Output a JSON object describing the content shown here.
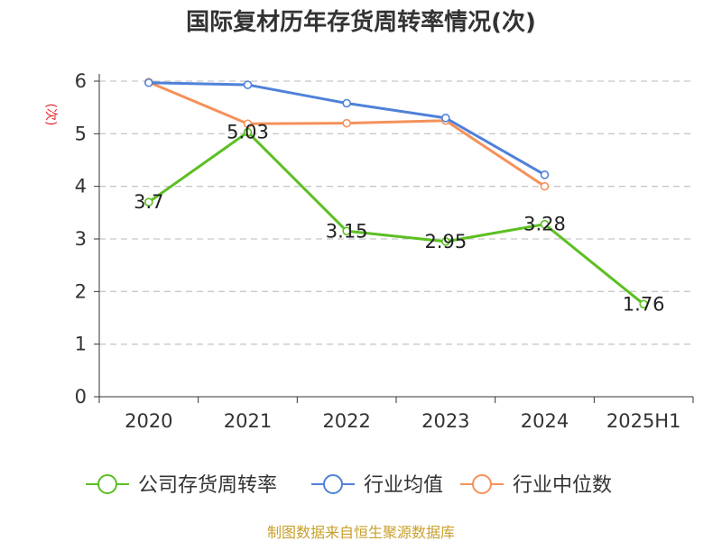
{
  "chart_data": {
    "type": "line",
    "title": "国际复材历年存货周转率情况(次)",
    "ylabel": "(次)",
    "xlabel": "",
    "categories": [
      "2020",
      "2021",
      "2022",
      "2023",
      "2024",
      "2025H1"
    ],
    "ylim": [
      0,
      6
    ],
    "yticks": [
      0,
      1,
      2,
      3,
      4,
      5,
      6
    ],
    "grid": true,
    "legend_position": "bottom",
    "series": [
      {
        "name": "公司存货周转率",
        "color": "#5cbf22",
        "values": [
          3.7,
          5.03,
          3.15,
          2.95,
          3.28,
          1.76
        ],
        "labels": [
          "3.7",
          "5.03",
          "3.15",
          "2.95",
          "3.28",
          "1.76"
        ]
      },
      {
        "name": "行业均值",
        "color": "#4f81d9",
        "values": [
          5.97,
          5.93,
          5.58,
          5.3,
          4.22,
          null
        ]
      },
      {
        "name": "行业中位数",
        "color": "#f5915b",
        "values": [
          5.98,
          5.19,
          5.2,
          5.25,
          4.0,
          null
        ]
      }
    ],
    "source": "制图数据来自恒生聚源数据库"
  }
}
